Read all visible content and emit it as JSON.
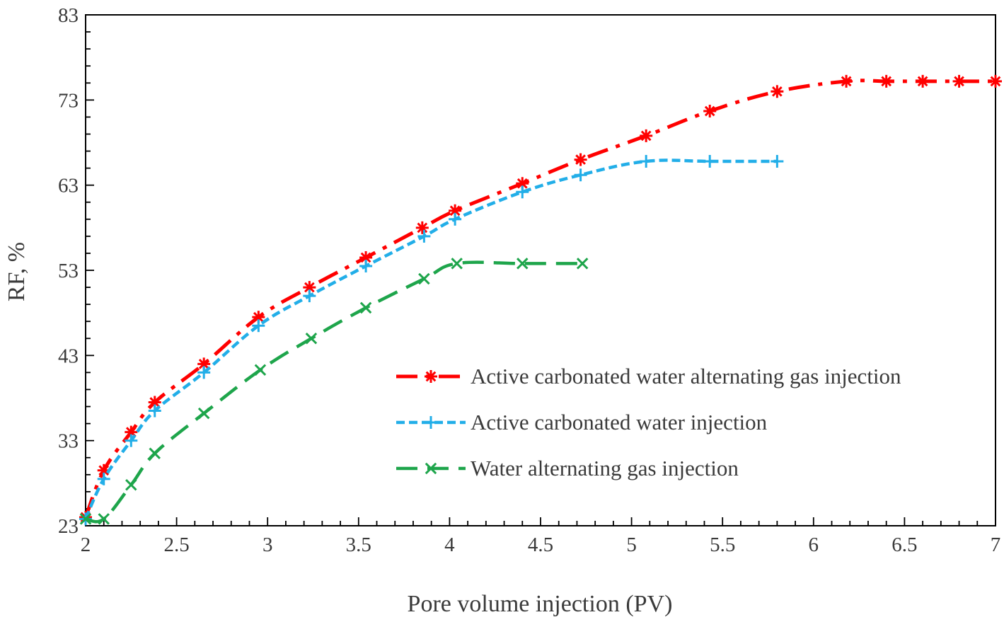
{
  "chart_data": {
    "type": "line",
    "title": "",
    "xlabel": "Pore volume injection (PV)",
    "ylabel": "RF, %",
    "xlim": [
      2,
      7
    ],
    "ylim": [
      23,
      83
    ],
    "xticks": [
      "2",
      "2.5",
      "3",
      "3.5",
      "4",
      "4.5",
      "5",
      "5.5",
      "6",
      "6.5",
      "7"
    ],
    "yticks": [
      "23",
      "33",
      "43",
      "53",
      "63",
      "73",
      "83"
    ],
    "grid": false,
    "legend_position": "center-right",
    "series": [
      {
        "name": "Active carbonated water alternating gas injection",
        "color": "#ff0000",
        "marker": "asterisk",
        "line_style": "dash-dot",
        "x": [
          2.0,
          2.1,
          2.25,
          2.38,
          2.65,
          2.95,
          3.23,
          3.54,
          3.85,
          4.03,
          4.4,
          4.72,
          5.08,
          5.43,
          5.8,
          6.18,
          6.4,
          6.6,
          6.8,
          7.0
        ],
        "y": [
          24,
          29.5,
          34,
          37.5,
          42,
          47.5,
          51,
          54.5,
          58,
          60,
          63.2,
          66,
          68.8,
          71.7,
          74,
          75.2,
          75.2,
          75.2,
          75.2,
          75.2
        ]
      },
      {
        "name": "Active carbonated water injection",
        "color": "#22aee8",
        "marker": "plus",
        "line_style": "short-dash",
        "x": [
          2.0,
          2.1,
          2.25,
          2.38,
          2.65,
          2.95,
          3.23,
          3.54,
          3.86,
          4.03,
          4.4,
          4.72,
          5.08,
          5.43,
          5.8
        ],
        "y": [
          23.8,
          28.5,
          33,
          36.5,
          41,
          46.5,
          50,
          53.5,
          57,
          59,
          62.2,
          64.2,
          65.8,
          65.8,
          65.8
        ]
      },
      {
        "name": "Water alternating gas injection",
        "color": "#1ea54b",
        "marker": "x",
        "line_style": "long-dash",
        "x": [
          2.0,
          2.1,
          2.25,
          2.38,
          2.65,
          2.96,
          3.24,
          3.54,
          3.86,
          4.04,
          4.4,
          4.73
        ],
        "y": [
          23.8,
          23.8,
          27.8,
          31.5,
          36.2,
          41.3,
          45,
          48.6,
          52,
          53.8,
          53.8,
          53.8
        ]
      }
    ]
  }
}
